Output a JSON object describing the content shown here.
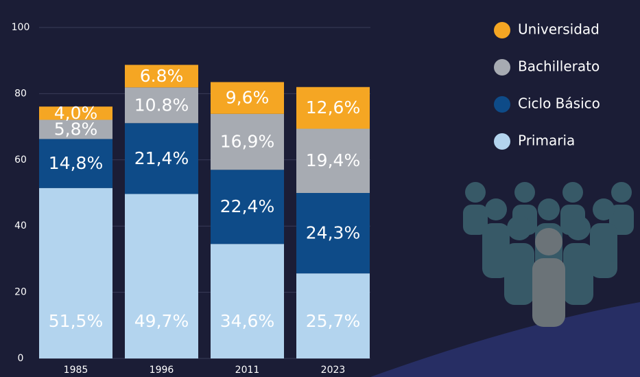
{
  "chart_data": {
    "type": "bar",
    "stacked": true,
    "categories": [
      "1985",
      "1996",
      "2011",
      "2023"
    ],
    "series": [
      {
        "name": "Universidad",
        "color": "#f5a623",
        "values": [
          4.0,
          6.8,
          9.6,
          12.6
        ],
        "value_labels": [
          "4,0%",
          "6.8%",
          "9,6%",
          "12,6%"
        ]
      },
      {
        "name": "Bachillerato",
        "color": "#a7abb2",
        "values": [
          5.8,
          10.8,
          16.9,
          19.4
        ],
        "value_labels": [
          "5,8%",
          "10.8%",
          "16,9%",
          "19,4%"
        ]
      },
      {
        "name": "Ciclo Básico",
        "color": "#0e4b88",
        "values": [
          14.8,
          21.4,
          22.4,
          24.3
        ],
        "value_labels": [
          "14,8%",
          "21,4%",
          "22,4%",
          "24,3%"
        ]
      },
      {
        "name": "Primaria",
        "color": "#b3d4ee",
        "values": [
          51.5,
          49.7,
          34.6,
          25.7
        ],
        "value_labels": [
          "51,5%",
          "49,7%",
          "34,6%",
          "25,7%"
        ]
      }
    ],
    "ylim": [
      0,
      100
    ],
    "yticks": [
      0,
      20,
      40,
      60,
      80,
      100
    ],
    "grid": true
  }
}
